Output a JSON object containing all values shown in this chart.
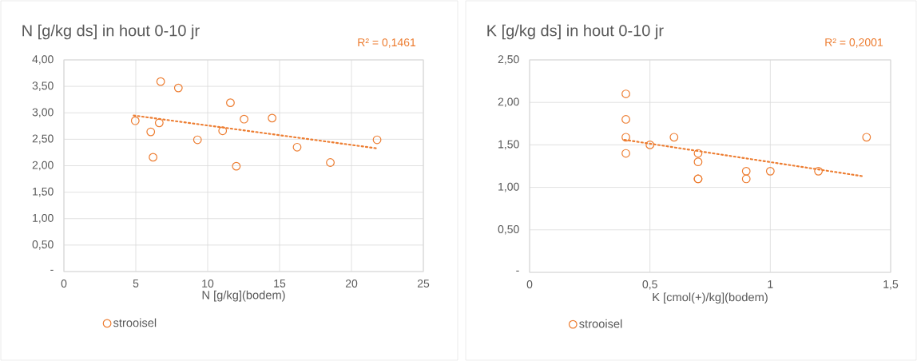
{
  "chart_data": [
    {
      "type": "scatter",
      "title": "N [g/kg ds] in hout  0-10 jr",
      "xlabel": "N [g/kg](bodem)",
      "annotations": [
        "R² = 0,1461"
      ],
      "xlim": [
        0,
        25
      ],
      "ylim": [
        0,
        4
      ],
      "xticks": [
        0,
        5,
        10,
        15,
        20,
        25
      ],
      "yticks": [
        {
          "value": 0,
          "label": "-"
        },
        {
          "value": 0.5,
          "label": "0,50"
        },
        {
          "value": 1,
          "label": "1,00"
        },
        {
          "value": 1.5,
          "label": "1,50"
        },
        {
          "value": 2,
          "label": "2,00"
        },
        {
          "value": 2.5,
          "label": "2,50"
        },
        {
          "value": 3,
          "label": "3,00"
        },
        {
          "value": 3.5,
          "label": "3,50"
        },
        {
          "value": 4,
          "label": "4,00"
        }
      ],
      "grid": true,
      "legend": "bottom",
      "marker": "circle",
      "series": [
        {
          "name": "strooisel",
          "color": "#ed7d31",
          "x": [
            4.96,
            6.73,
            7.96,
            6.04,
            6.63,
            6.2,
            9.29,
            11.04,
            11.58,
            12.53,
            11.99,
            14.48,
            16.22,
            18.53,
            21.78
          ],
          "values": [
            2.85,
            3.59,
            3.47,
            2.64,
            2.81,
            2.16,
            2.49,
            2.66,
            3.19,
            2.88,
            1.99,
            2.9,
            2.35,
            2.06,
            2.49
          ]
        },
        {
          "type": "line",
          "color": "#ed7d31",
          "line_style": "dotted",
          "marker": "none",
          "x": [
            4.85,
            21.72
          ],
          "values": [
            2.95,
            2.33
          ]
        }
      ]
    },
    {
      "type": "scatter",
      "title": "K [g/kg ds] in hout  0-10 jr",
      "xlabel": "K [cmol(+)/kg](bodem)",
      "annotations": [
        "R² = 0,2001"
      ],
      "xlim": [
        0,
        1.5
      ],
      "ylim": [
        0,
        2.5
      ],
      "xticks": [
        0,
        {
          "value": 0.5,
          "label": "0,5"
        },
        1,
        {
          "value": 1.5,
          "label": "1,5"
        }
      ],
      "yticks": [
        {
          "value": 0,
          "label": "-"
        },
        {
          "value": 0.5,
          "label": "0,50"
        },
        {
          "value": 1,
          "label": "1,00"
        },
        {
          "value": 1.5,
          "label": "1,50"
        },
        {
          "value": 2,
          "label": "2,00"
        },
        {
          "value": 2.5,
          "label": "2,50"
        }
      ],
      "grid": true,
      "legend": "bottom",
      "marker": "circle",
      "series": [
        {
          "name": "strooisel",
          "color": "#ed7d31",
          "x": [
            0.4,
            0.4,
            0.4,
            0.4,
            0.5,
            0.6,
            0.7,
            0.7,
            0.7,
            0.7,
            0.9,
            0.9,
            1.0,
            1.2,
            1.4
          ],
          "values": [
            2.1,
            1.8,
            1.59,
            1.4,
            1.5,
            1.59,
            1.4,
            1.3,
            1.1,
            1.1,
            1.19,
            1.1,
            1.19,
            1.19,
            1.59
          ]
        },
        {
          "type": "line",
          "color": "#ed7d31",
          "line_style": "dotted",
          "marker": "none",
          "x": [
            0.394,
            1.387
          ],
          "values": [
            1.56,
            1.13
          ]
        }
      ]
    }
  ]
}
